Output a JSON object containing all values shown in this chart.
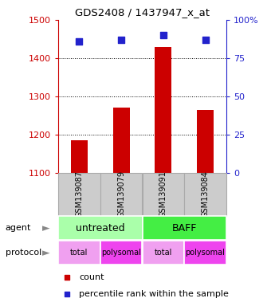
{
  "title": "GDS2408 / 1437947_x_at",
  "samples": [
    "GSM139087",
    "GSM139079",
    "GSM139091",
    "GSM139084"
  ],
  "bar_values": [
    1185,
    1270,
    1430,
    1265
  ],
  "bar_bottom": 1100,
  "dot_values": [
    86,
    87,
    90,
    87
  ],
  "ylim_left": [
    1100,
    1500
  ],
  "ylim_right": [
    0,
    100
  ],
  "yticks_left": [
    1100,
    1200,
    1300,
    1400,
    1500
  ],
  "yticks_right": [
    0,
    25,
    50,
    75,
    100
  ],
  "ytick_right_labels": [
    "0",
    "25",
    "50",
    "75",
    "100%"
  ],
  "bar_color": "#cc0000",
  "dot_color": "#2222cc",
  "agent_data": [
    {
      "label": "untreated",
      "span": [
        0,
        2
      ],
      "color": "#aaffaa"
    },
    {
      "label": "BAFF",
      "span": [
        2,
        4
      ],
      "color": "#44ee44"
    }
  ],
  "protocol_labels": [
    "total",
    "polysomal",
    "total",
    "polysomal"
  ],
  "protocol_colors": [
    "#f0a0f0",
    "#ee44ee",
    "#f0a0f0",
    "#ee44ee"
  ],
  "sample_box_color": "#cccccc",
  "sample_box_edge": "#aaaaaa",
  "left_axis_color": "#cc0000",
  "right_axis_color": "#2222cc",
  "grid_color": "black",
  "grid_linestyle": ":",
  "grid_linewidth": 0.7,
  "grid_yticks": [
    1200,
    1300,
    1400
  ],
  "legend_count_color": "#cc0000",
  "legend_pct_color": "#2222cc",
  "bar_width": 0.4,
  "dot_size": 30
}
